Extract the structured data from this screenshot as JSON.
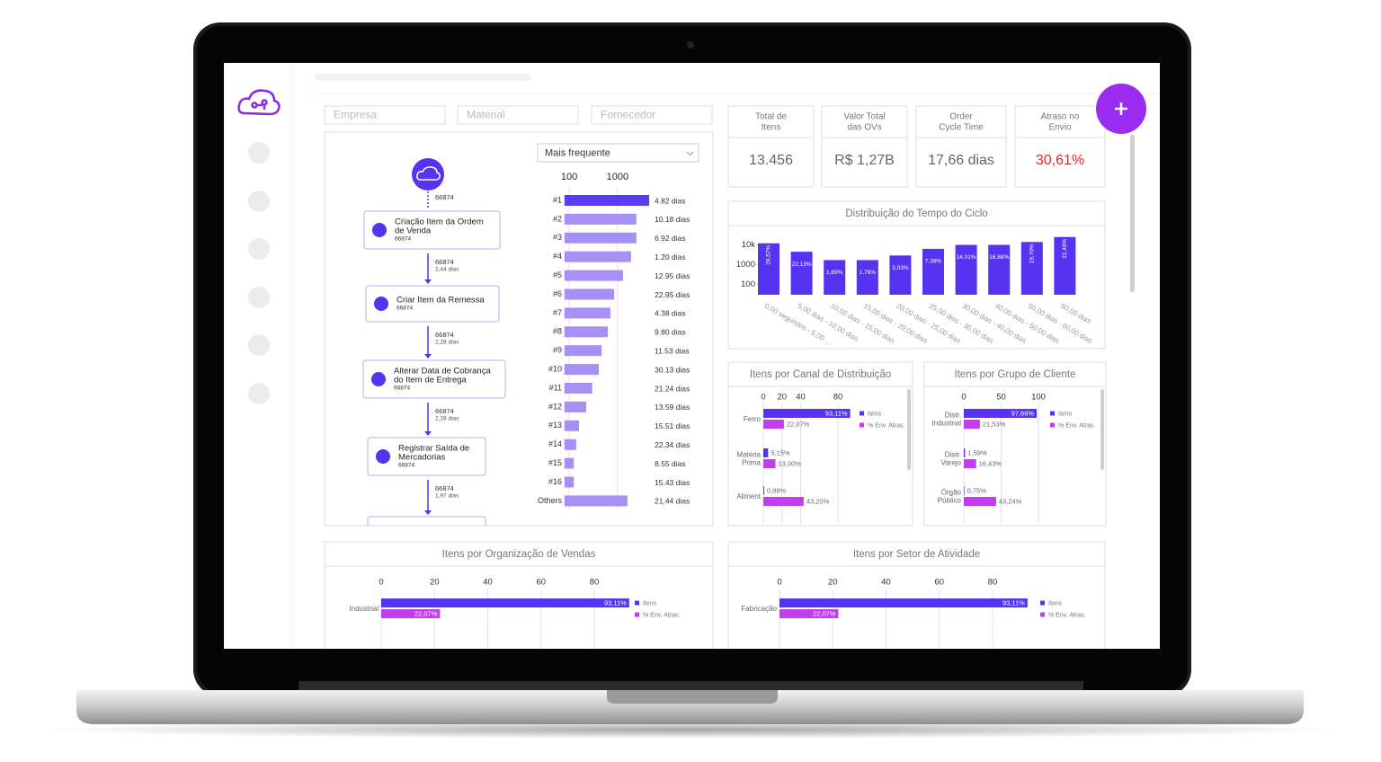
{
  "filters": [
    "Empresa",
    "Material",
    "Fornecedor"
  ],
  "kpis": [
    {
      "label": [
        "Total de",
        "Itens"
      ],
      "value": "13.456"
    },
    {
      "label": [
        "Valor Total",
        "das OVs"
      ],
      "value": "R$ 1,27B"
    },
    {
      "label": [
        "Order",
        "Cycle Time"
      ],
      "value": "17,66 dias"
    },
    {
      "label": [
        "Atraso no",
        "Envio"
      ],
      "value": "30,61%",
      "color": "#e8262d"
    }
  ],
  "flow": {
    "start_count": "66874",
    "steps": [
      {
        "label": [
          "Criação Item da Ordem",
          "de Venda"
        ],
        "count": "66874"
      },
      {
        "label": [
          "Criar Item da Remessa"
        ],
        "count": "66874"
      },
      {
        "label": [
          "Alterar Data de Cobrança",
          "do Item de Entrega"
        ],
        "count": "66874"
      },
      {
        "label": [
          "Registrar Saída de",
          "Mercadorias"
        ],
        "count": "66874"
      }
    ],
    "edges": [
      {
        "count": "66874",
        "duration": "2,44 dias"
      },
      {
        "count": "66874",
        "duration": "2,28 dias"
      },
      {
        "count": "66874",
        "duration": "2,28 dias"
      },
      {
        "count": "66874",
        "duration": "1,97 dias"
      }
    ]
  },
  "variants": {
    "dropdown": "Mais frequente",
    "log": true,
    "xlim": [
      80,
      5000
    ],
    "xticks": [
      100,
      1000
    ],
    "color": "#5c3cf2",
    "secondary_color": "#a68ff5",
    "rows": [
      {
        "label": "#1",
        "value": 4500,
        "duration": "4.82 dias"
      },
      {
        "label": "#2",
        "value": 2450,
        "duration": "10.18 dias"
      },
      {
        "label": "#3",
        "value": 2450,
        "duration": "6.92 dias"
      },
      {
        "label": "#4",
        "value": 1900,
        "duration": "1.20 dias"
      },
      {
        "label": "#5",
        "value": 1300,
        "duration": "12.95 dias"
      },
      {
        "label": "#6",
        "value": 850,
        "duration": "22.95 dias"
      },
      {
        "label": "#7",
        "value": 710,
        "duration": "4.38 dias"
      },
      {
        "label": "#8",
        "value": 630,
        "duration": "9.80 dias"
      },
      {
        "label": "#9",
        "value": 470,
        "duration": "11.53 dias"
      },
      {
        "label": "#10",
        "value": 410,
        "duration": "30.13 dias"
      },
      {
        "label": "#11",
        "value": 300,
        "duration": "21.24 dias"
      },
      {
        "label": "#12",
        "value": 225,
        "duration": "13.59 dias"
      },
      {
        "label": "#13",
        "value": 160,
        "duration": "15.51 dias"
      },
      {
        "label": "#14",
        "value": 140,
        "duration": "22.34 dias"
      },
      {
        "label": "#15",
        "value": 125,
        "duration": "8.55 dias"
      },
      {
        "label": "#16",
        "value": 125,
        "duration": "15.43 dias"
      },
      {
        "label": "Others",
        "value": 1600,
        "duration": "21,44 dias"
      }
    ]
  },
  "cycle": {
    "title": "Distribuição do Tempo do Ciclo",
    "log": true,
    "ylim": [
      30,
      30000
    ],
    "yticks": [
      100,
      1000,
      {
        "value": 10000,
        "label": "10k"
      }
    ],
    "color": "#5533f0",
    "categories": [
      "0,00 segundos - 5,00 ...",
      "5,00 dias - 10,00 dias",
      "10,00 dias - 15,00 dias",
      "15,00 dias - 20,00 dias",
      "20,00 dias - 25,00 dias",
      "25,00 dias - 30,00 dias",
      "30,00 dias - 40,00 dias",
      "40,00 dias - 50,00 dias",
      "50,00 dias - 60,00 dias",
      "60,00 dias"
    ],
    "values": [
      12000,
      4500,
      1700,
      1700,
      2900,
      6300,
      10000,
      10000,
      14000,
      25000
    ],
    "bar_labels": [
      "26,57%",
      "22,13%",
      "1,69%",
      "1,76%",
      "3,03%",
      "7,38%",
      "14,01%",
      "16,88%",
      "19,70%",
      "21,49%"
    ]
  },
  "channel": {
    "title": "Itens por Canal de Distribuição",
    "xlim": [
      0,
      100
    ],
    "xticks": [
      0,
      20,
      40,
      80
    ],
    "categories": [
      [
        "Ferro"
      ],
      [
        "Matéria",
        "Prima"
      ],
      [
        "Aliment"
      ]
    ],
    "series": [
      {
        "name": "Itens",
        "color": "#5533f0",
        "values": [
          93.11,
          5.15,
          0.88
        ],
        "value_labels": [
          "93,11%",
          "5,15%",
          "0,88%"
        ]
      },
      {
        "name": "% Env. Atras.",
        "color": "#c23cf0",
        "values": [
          22.07,
          13.0,
          43.2
        ],
        "value_labels": [
          "22,07%",
          "13,00%",
          "43,20%"
        ]
      }
    ]
  },
  "group": {
    "title": "Itens por Grupo de Cliente",
    "xlim": [
      0,
      120
    ],
    "xticks": [
      0,
      50,
      100
    ],
    "categories": [
      [
        "Distr.",
        "Industrial"
      ],
      [
        "Distr.",
        "Varejo"
      ],
      [
        "Órgão",
        "Público"
      ]
    ],
    "series": [
      {
        "name": "Itens",
        "color": "#5533f0",
        "values": [
          97.66,
          1.59,
          0.75
        ],
        "value_labels": [
          "97,66%",
          "1,59%",
          "0,75%"
        ]
      },
      {
        "name": "% Env. Atras.",
        "color": "#c23cf0",
        "values": [
          21.53,
          16.43,
          43.24
        ],
        "value_labels": [
          "21,53%",
          "16,43%",
          "43,24%"
        ]
      }
    ]
  },
  "org": {
    "title": "Itens por Organização de Vendas",
    "xlim": [
      0,
      100
    ],
    "xticks": [
      0,
      20,
      40,
      60,
      80
    ],
    "categories": [
      [
        "Industrial"
      ]
    ],
    "series": [
      {
        "name": "Itens",
        "color": "#5533f0",
        "values": [
          93.11
        ],
        "value_labels": [
          "93,11%"
        ]
      },
      {
        "name": "% Env. Atras.",
        "color": "#c23cf0",
        "values": [
          22.07
        ],
        "value_labels": [
          "22,07%"
        ]
      }
    ]
  },
  "sector": {
    "title": "Itens por Setor de Atividade",
    "xlim": [
      0,
      100
    ],
    "xticks": [
      0,
      20,
      40,
      60,
      80
    ],
    "categories": [
      [
        "Fabricação"
      ]
    ],
    "series": [
      {
        "name": "Itens",
        "color": "#5533f0",
        "values": [
          93.11
        ],
        "value_labels": [
          "93,11%"
        ]
      },
      {
        "name": "% Env. Atras.",
        "color": "#c23cf0",
        "values": [
          22.07
        ],
        "value_labels": [
          "22,07%"
        ]
      }
    ]
  }
}
